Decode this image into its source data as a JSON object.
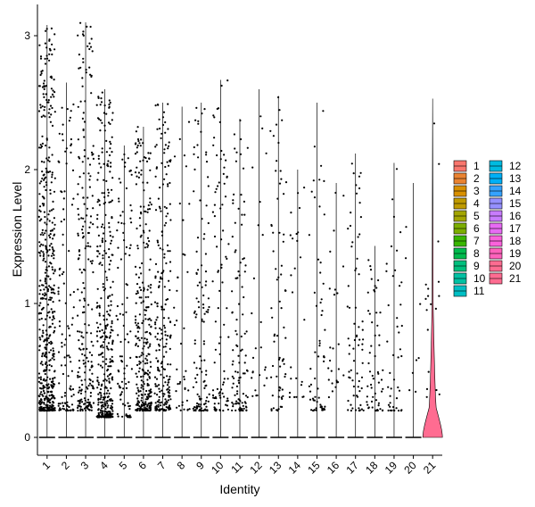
{
  "chart_data": {
    "type": "violin",
    "xlabel": "Identity",
    "ylabel": "Expression Level",
    "ylim": [
      -0.15,
      3.15
    ],
    "yticks": [
      0,
      1,
      2,
      3
    ],
    "grid": false,
    "legend_position": "right",
    "legend_columns": 2,
    "categories": [
      "1",
      "2",
      "3",
      "4",
      "5",
      "6",
      "7",
      "8",
      "9",
      "10",
      "11",
      "12",
      "13",
      "14",
      "15",
      "16",
      "17",
      "18",
      "19",
      "20",
      "21"
    ],
    "colors": [
      "#F8766D",
      "#EA8331",
      "#D89000",
      "#C09B00",
      "#A3A500",
      "#7CAE00",
      "#39B600",
      "#00BB4E",
      "#00BF7D",
      "#00C1A3",
      "#00BFC4",
      "#00BAE0",
      "#00B0F6",
      "#35A2FF",
      "#9590FF",
      "#C77CFF",
      "#E76BF3",
      "#FA62DB",
      "#FF62BC",
      "#FF6C91",
      "#FF6C91"
    ],
    "series": [
      {
        "name": "1",
        "max": 3.08,
        "expressing_min": 0.2,
        "expressing_count": 520
      },
      {
        "name": "2",
        "max": 2.65,
        "expressing_min": 0.2,
        "expressing_count": 110
      },
      {
        "name": "3",
        "max": 3.1,
        "expressing_min": 0.2,
        "expressing_count": 230
      },
      {
        "name": "4",
        "max": 2.6,
        "expressing_min": 0.15,
        "expressing_count": 360
      },
      {
        "name": "5",
        "max": 2.18,
        "expressing_min": 0.15,
        "expressing_count": 95
      },
      {
        "name": "6",
        "max": 2.32,
        "expressing_min": 0.2,
        "expressing_count": 300
      },
      {
        "name": "7",
        "max": 2.5,
        "expressing_min": 0.2,
        "expressing_count": 240
      },
      {
        "name": "8",
        "max": 2.47,
        "expressing_min": 0.2,
        "expressing_count": 40
      },
      {
        "name": "9",
        "max": 2.5,
        "expressing_min": 0.2,
        "expressing_count": 120
      },
      {
        "name": "10",
        "max": 2.67,
        "expressing_min": 0.2,
        "expressing_count": 90
      },
      {
        "name": "11",
        "max": 2.38,
        "expressing_min": 0.2,
        "expressing_count": 110
      },
      {
        "name": "12",
        "max": 2.6,
        "expressing_min": 0.3,
        "expressing_count": 25
      },
      {
        "name": "13",
        "max": 2.55,
        "expressing_min": 0.2,
        "expressing_count": 70
      },
      {
        "name": "14",
        "max": 2.0,
        "expressing_min": 0.3,
        "expressing_count": 25
      },
      {
        "name": "15",
        "max": 2.5,
        "expressing_min": 0.2,
        "expressing_count": 60
      },
      {
        "name": "16",
        "max": 1.9,
        "expressing_min": 0.3,
        "expressing_count": 25
      },
      {
        "name": "17",
        "max": 2.12,
        "expressing_min": 0.2,
        "expressing_count": 70
      },
      {
        "name": "18",
        "max": 1.43,
        "expressing_min": 0.2,
        "expressing_count": 55
      },
      {
        "name": "19",
        "max": 2.05,
        "expressing_min": 0.2,
        "expressing_count": 45
      },
      {
        "name": "20",
        "max": 1.9,
        "expressing_min": 0.3,
        "expressing_count": 8
      },
      {
        "name": "21",
        "max": 2.53,
        "expressing_min": 0.3,
        "expressing_count": 18
      }
    ]
  }
}
